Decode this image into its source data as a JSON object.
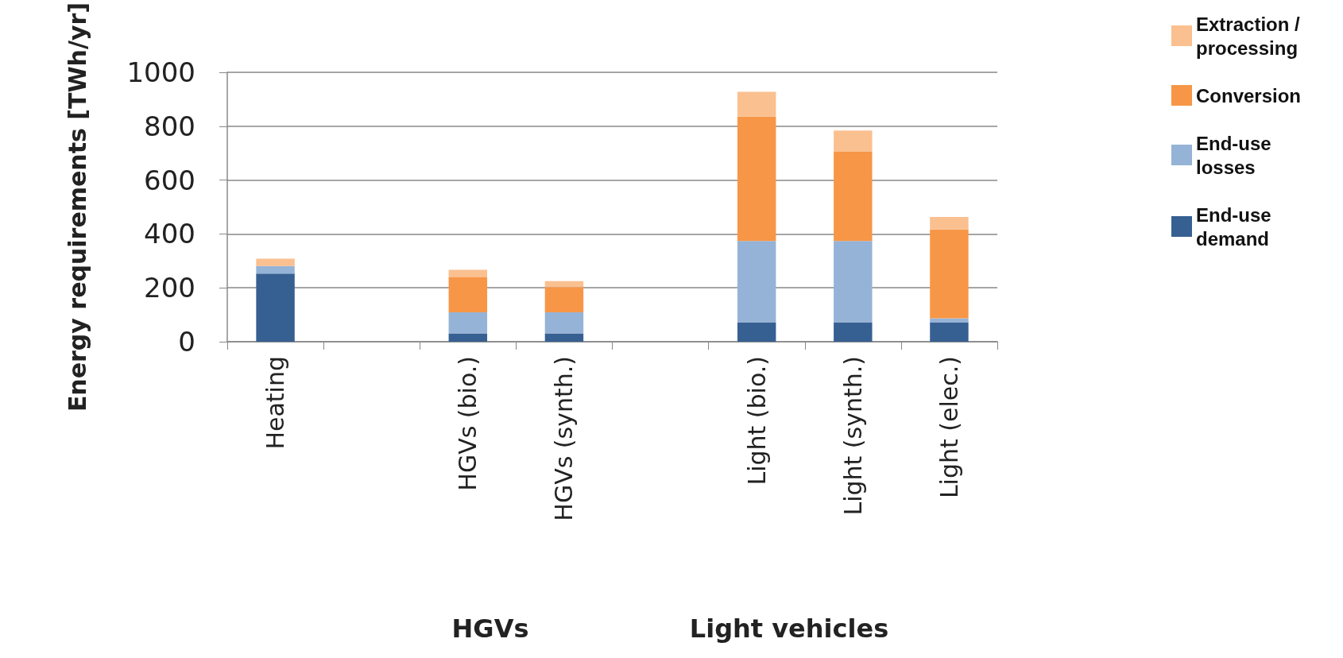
{
  "chart_data": {
    "type": "bar",
    "ylabel": "Energy requirements [TWh/yr]",
    "categories": [
      "Heating",
      null,
      "HGVs (bio.)",
      "HGVs (synth.)",
      null,
      "Light (bio.)",
      "Light (synth.)",
      "Light (elec.)"
    ],
    "stacked": true,
    "ylim": [
      0,
      1000
    ],
    "yticks": [
      0,
      200,
      400,
      600,
      800,
      1000
    ],
    "grid": "y",
    "legend": "right",
    "series": [
      {
        "name": "End-use demand",
        "color": "#376092",
        "values": [
          253,
          null,
          31,
          31,
          null,
          72,
          72,
          72
        ]
      },
      {
        "name": "End-use losses",
        "color": "#95b3d7",
        "values": [
          28,
          null,
          78,
          78,
          null,
          302,
          302,
          15
        ]
      },
      {
        "name": "Conversion",
        "color": "#f79646",
        "values": [
          null,
          null,
          130,
          94,
          null,
          462,
          331,
          330
        ]
      },
      {
        "name": "Extraction / processing",
        "color": "#fac090",
        "values": [
          27,
          null,
          28,
          22,
          null,
          92,
          79,
          46
        ]
      }
    ],
    "annotations": [
      "HGVs",
      "Light vehicles"
    ]
  }
}
